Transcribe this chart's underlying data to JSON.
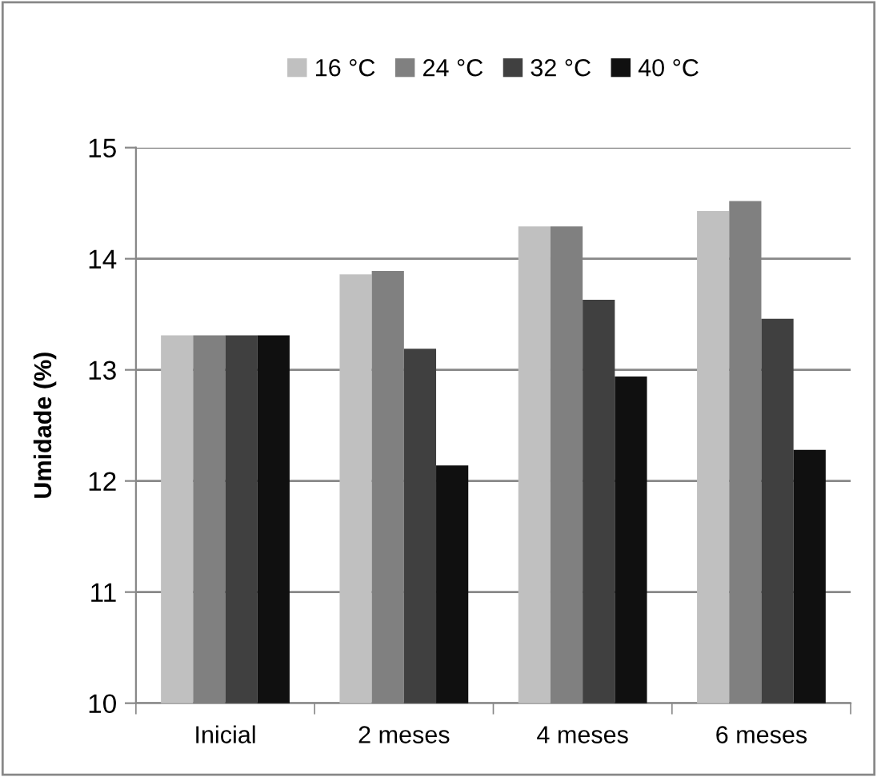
{
  "chart_data": {
    "type": "bar",
    "ylabel": "Umidade (%)",
    "categories": [
      "Inicial",
      "2 meses",
      "4 meses",
      "6 meses"
    ],
    "series": [
      {
        "name": "16 °C",
        "color": "#c0c0c0",
        "values": [
          13.31,
          13.86,
          14.29,
          14.43
        ]
      },
      {
        "name": "24 °C",
        "color": "#808080",
        "values": [
          13.31,
          13.89,
          14.29,
          14.52
        ]
      },
      {
        "name": "32 °C",
        "color": "#404040",
        "values": [
          13.31,
          13.19,
          13.63,
          13.46
        ]
      },
      {
        "name": "40 °C",
        "color": "#101010",
        "values": [
          13.31,
          12.14,
          12.94,
          12.28
        ]
      }
    ],
    "ylim": [
      10,
      15
    ],
    "yticks": [
      10,
      11,
      12,
      13,
      14,
      15
    ],
    "grid": "y",
    "legend": "top"
  }
}
